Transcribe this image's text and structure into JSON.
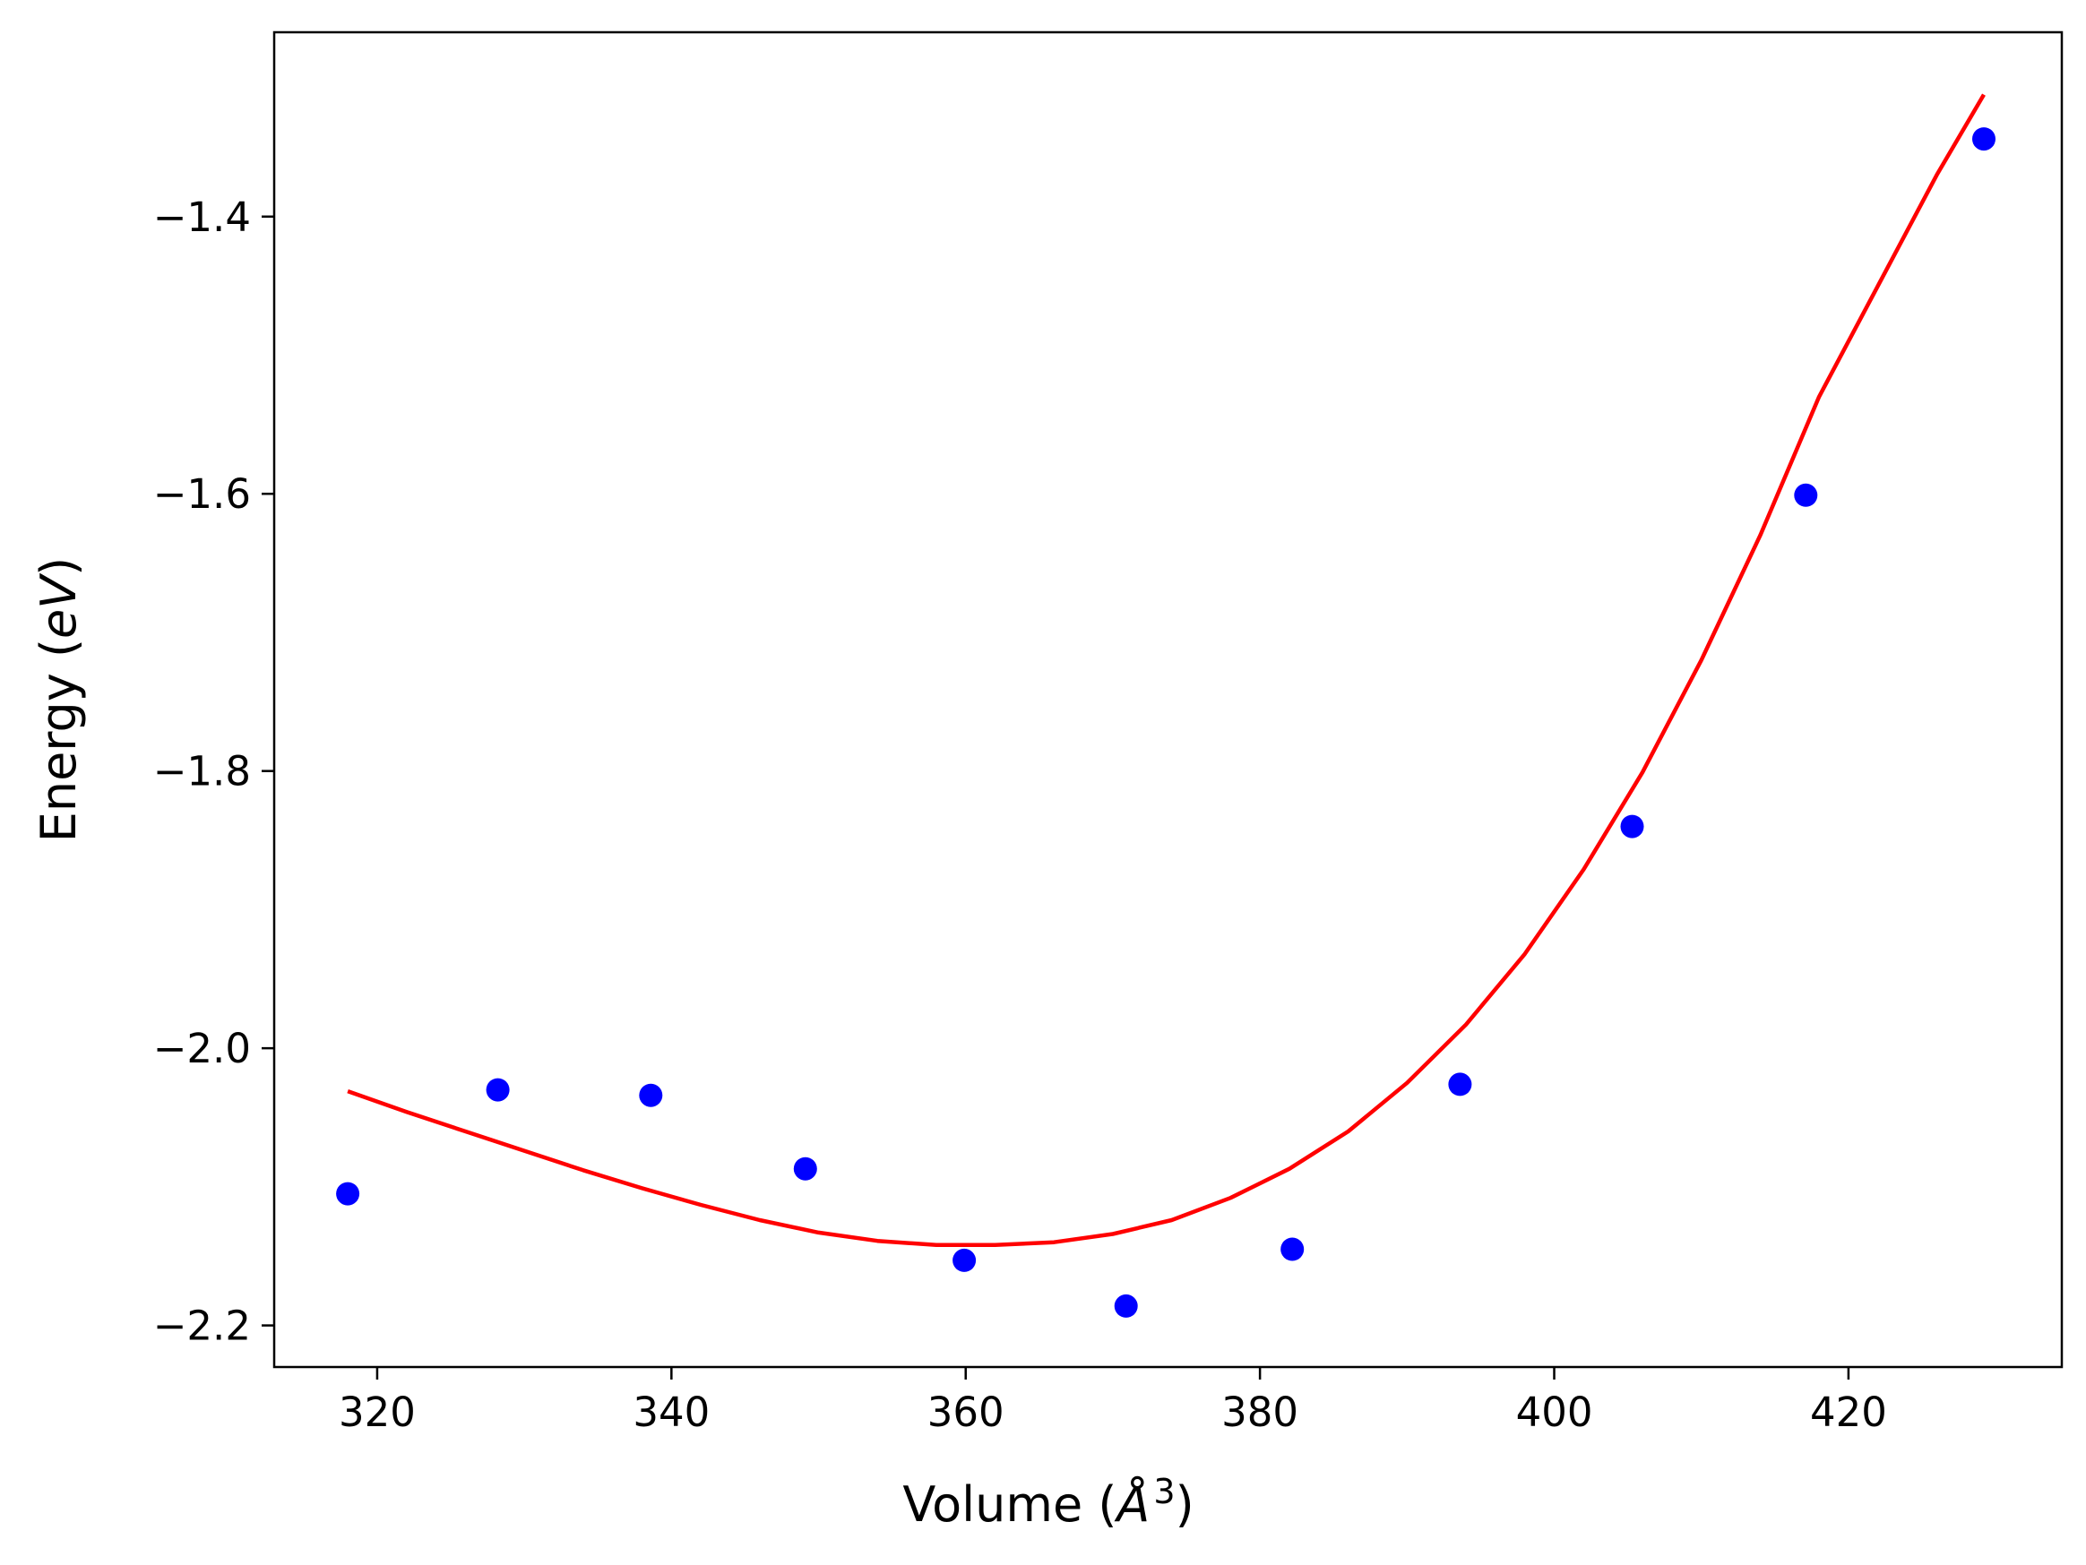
{
  "chart_data": {
    "type": "scatter",
    "title": "",
    "xlabel": "Volume (Å³)",
    "xlabel_parts": {
      "prefix": "Volume (",
      "symbol": "Å",
      "exponent": "3",
      "suffix": ")"
    },
    "ylabel": "Energy (eV)",
    "ylabel_parts": {
      "prefix": "Energy (",
      "symbol": "eV",
      "suffix": ")"
    },
    "xlim": [
      313,
      434.5
    ],
    "ylim": [
      -2.23,
      -1.267
    ],
    "xticks": [
      320,
      340,
      360,
      380,
      400,
      420
    ],
    "xtick_labels": [
      "320",
      "340",
      "360",
      "380",
      "400",
      "420"
    ],
    "yticks": [
      -2.2,
      -2.0,
      -1.8,
      -1.6,
      -1.4
    ],
    "ytick_labels": [
      "−2.2",
      "−2.0",
      "−1.8",
      "−1.6",
      "−1.4"
    ],
    "grid": false,
    "legend": "none",
    "series": [
      {
        "kind": "scatter",
        "color": "#0000ff",
        "x": [
          318.0,
          328.2,
          338.6,
          349.1,
          359.9,
          370.9,
          382.2,
          393.6,
          405.3,
          417.1,
          429.2
        ],
        "y": [
          -2.105,
          -2.03,
          -2.034,
          -2.087,
          -2.153,
          -2.186,
          -2.145,
          -2.026,
          -1.84,
          -1.601,
          -1.344
        ]
      },
      {
        "kind": "line",
        "color": "#ff0000",
        "x": [
          318.0,
          322.0,
          326.0,
          330.0,
          334.0,
          338.0,
          342.0,
          346.0,
          350.0,
          354.0,
          358.0,
          362.0,
          366.0,
          370.0,
          374.0,
          378.0,
          382.0,
          386.0,
          390.0,
          394.0,
          398.0,
          402.0,
          406.0,
          410.0,
          414.0,
          418.0,
          422.0,
          426.0,
          429.2
        ],
        "y": [
          -2.031,
          -2.046,
          -2.06,
          -2.074,
          -2.088,
          -2.101,
          -2.113,
          -2.124,
          -2.133,
          -2.139,
          -2.142,
          -2.142,
          -2.14,
          -2.134,
          -2.124,
          -2.108,
          -2.087,
          -2.06,
          -2.025,
          -1.983,
          -1.932,
          -1.871,
          -1.801,
          -1.72,
          -1.63,
          -1.53,
          -1.45,
          -1.37,
          -1.312
        ]
      }
    ]
  }
}
